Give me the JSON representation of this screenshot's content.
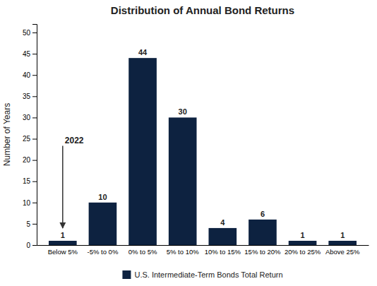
{
  "chart_data": {
    "type": "bar",
    "title": "Distribution of Annual Bond Returns",
    "categories": [
      "Below 5%",
      "-5% to 0%",
      "0% to 5%",
      "5% to 10%",
      "10% to 15%",
      "15% to 20%",
      "20% to 25%",
      "Above 25%"
    ],
    "series": [
      {
        "name": "U.S. Intermediate-Term Bonds Total Return",
        "color": "#0d2240",
        "values": [
          1,
          10,
          44,
          30,
          4,
          6,
          1,
          1
        ]
      }
    ],
    "ylabel": "Number of Years",
    "ylim": [
      0,
      52
    ],
    "yticks": [
      0,
      5,
      10,
      15,
      20,
      25,
      30,
      35,
      40,
      45,
      50
    ],
    "grid": false,
    "legend": "bottom",
    "data_labels": true,
    "annotations": [
      {
        "text": "2022",
        "x": "Below 5%",
        "y": 24
      }
    ]
  }
}
